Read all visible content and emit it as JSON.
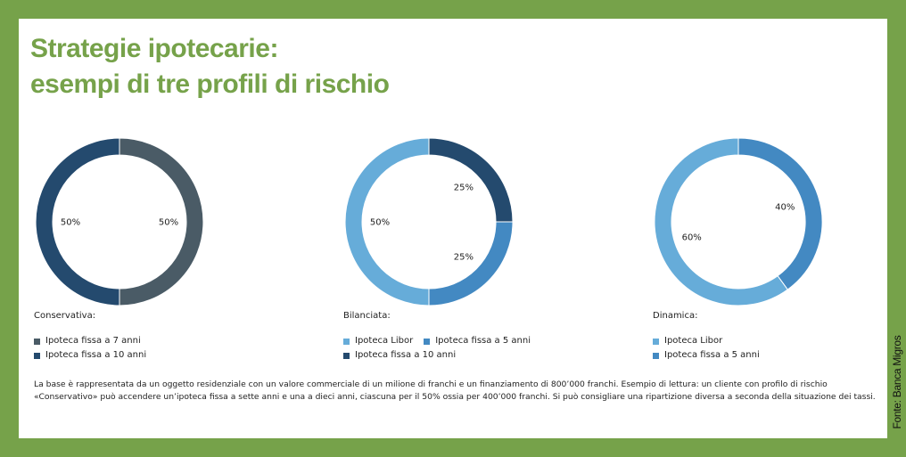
{
  "title": {
    "line1": "Strategie ipotecarie:",
    "line2": "esempi di tre profili di rischio"
  },
  "chart_data": [
    {
      "type": "pie",
      "title": "Conservativa:",
      "slices": [
        {
          "name": "Ipoteca fissa a 7 anni",
          "value": 50,
          "label": "50%",
          "color": "#4a5b66"
        },
        {
          "name": "Ipoteca fissa a 10 anni",
          "value": 50,
          "label": "50%",
          "color": "#244a6e"
        }
      ],
      "legend_rows": [
        [
          {
            "name": "Ipoteca fissa a 7 anni",
            "color": "#4a5b66"
          }
        ],
        [
          {
            "name": "Ipoteca fissa a 10 anni",
            "color": "#244a6e"
          }
        ]
      ]
    },
    {
      "type": "pie",
      "title": "Bilanciata:",
      "slices": [
        {
          "name": "Ipoteca fissa a 10 anni",
          "value": 25,
          "label": "25%",
          "color": "#244a6e"
        },
        {
          "name": "Ipoteca fissa a 5 anni",
          "value": 25,
          "label": "25%",
          "color": "#4389c2"
        },
        {
          "name": "Ipoteca Libor",
          "value": 50,
          "label": "50%",
          "color": "#66acd9"
        }
      ],
      "legend_rows": [
        [
          {
            "name": "Ipoteca Libor",
            "color": "#66acd9"
          },
          {
            "name": "Ipoteca fissa a 5 anni",
            "color": "#4389c2"
          }
        ],
        [
          {
            "name": "Ipoteca fissa a 10 anni",
            "color": "#244a6e"
          }
        ]
      ]
    },
    {
      "type": "pie",
      "title": "Dinamica:",
      "slices": [
        {
          "name": "Ipoteca fissa a 5 anni",
          "value": 40,
          "label": "40%",
          "color": "#4389c2"
        },
        {
          "name": "Ipoteca Libor",
          "value": 60,
          "label": "60%",
          "color": "#66acd9"
        }
      ],
      "legend_rows": [
        [
          {
            "name": "Ipoteca Libor",
            "color": "#66acd9"
          }
        ],
        [
          {
            "name": "Ipoteca fissa a 5 anni",
            "color": "#4389c2"
          }
        ]
      ]
    }
  ],
  "note": "La base è rappresentata da un oggetto residenziale con un valore commerciale di un milione di franchi e un finanziamento di 800’000 franchi. Esempio di lettura: un cliente con profilo di rischio «Conservativo» può accendere un’ipoteca fissa a sette anni e una a dieci anni, ciascuna per il 50% ossia per 400’000 franchi. Si può consigliare una ripartizione diversa a seconda della situazione dei tassi.",
  "source": "Fonte: Banca Migros",
  "colors": {
    "frame": "#76a24a",
    "title": "#76a24a"
  }
}
